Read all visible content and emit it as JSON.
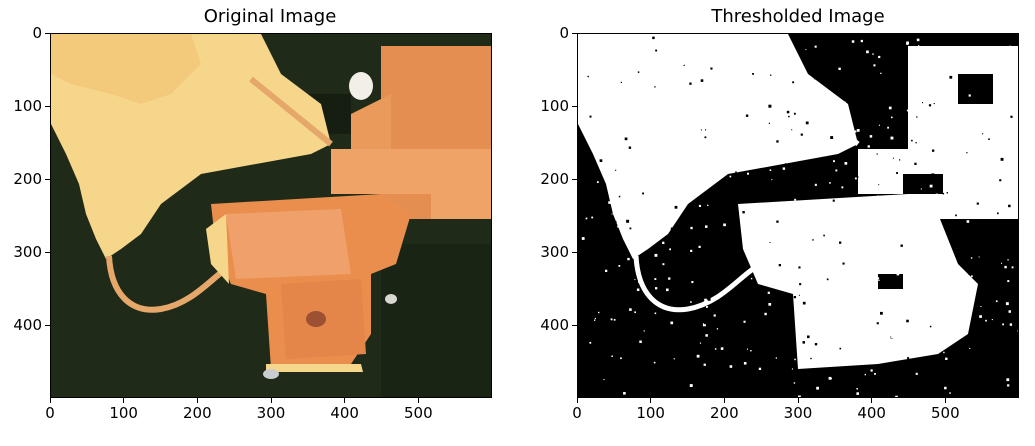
{
  "panels": [
    {
      "title": "Original Image",
      "kind": "satellite-rgb",
      "colors": {
        "forest": "#1f2a18",
        "mine": "#e98d4a",
        "pale": "#f6d68a",
        "road": "#e6a86a",
        "cloud": "#f2efe9",
        "shade": "#141a10"
      }
    },
    {
      "title": "Thresholded Image",
      "kind": "binary-mask",
      "colors": {
        "background": "#000000",
        "foreground": "#ffffff"
      }
    }
  ],
  "axes": {
    "x_ticks": [
      "0",
      "100",
      "200",
      "300",
      "400",
      "500"
    ],
    "y_ticks": [
      "0",
      "100",
      "200",
      "300",
      "400"
    ],
    "x_values": [
      0,
      100,
      200,
      300,
      400,
      500
    ],
    "y_values": [
      0,
      100,
      200,
      300,
      400
    ],
    "x_max": 600,
    "y_max": 500
  }
}
